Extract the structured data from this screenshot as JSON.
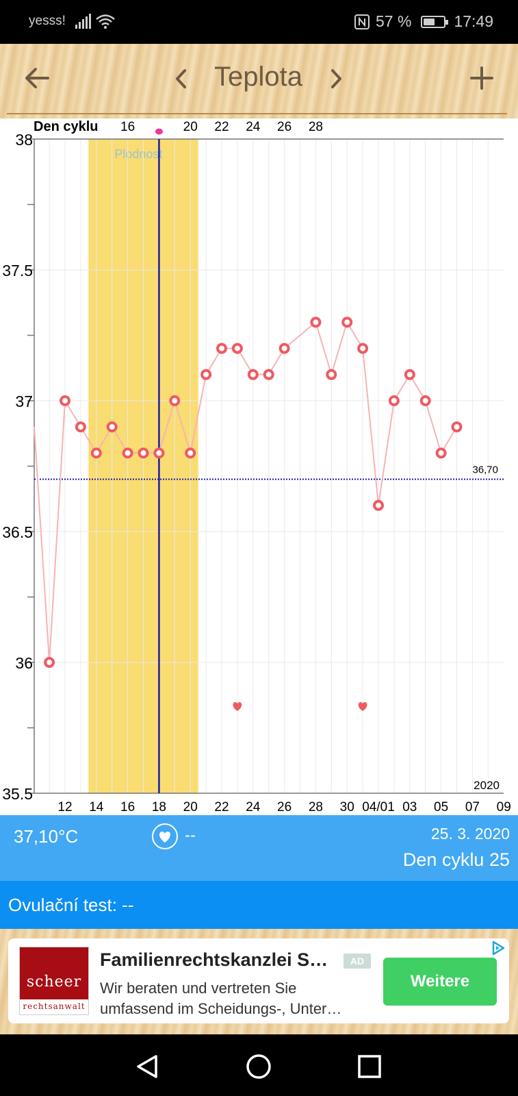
{
  "status_bar": {
    "carrier": "yesss!",
    "battery": "57 %",
    "battery_level": 0.57,
    "time": "17:49",
    "icons": [
      "signal-icon",
      "wifi-icon",
      "nfc-icon",
      "battery-icon"
    ]
  },
  "header": {
    "title": "Teplota",
    "back_icon": "arrow-left-icon",
    "prev_icon": "chevron-left-icon",
    "next_icon": "chevron-right-icon",
    "add_icon": "plus-icon",
    "accent": "#6f5a43"
  },
  "chart_data": {
    "type": "line",
    "top_axis_label": "Den cyklu",
    "top_ticks": [
      "16",
      "20",
      "22",
      "24",
      "26",
      "28"
    ],
    "y_ticks": [
      "38",
      "37.5",
      "37",
      "36.5",
      "36",
      "35.5"
    ],
    "ylim": [
      35.5,
      38
    ],
    "x_ticks": [
      "12",
      "14",
      "16",
      "18",
      "20",
      "22",
      "24",
      "26",
      "28",
      "30",
      "04/01",
      "03",
      "05",
      "07",
      "09"
    ],
    "year_label": "2020",
    "fertile_label": "Plodnost",
    "fertile_range": [
      13.5,
      20.5
    ],
    "current_day": 18,
    "baseline_value": 36.7,
    "baseline_label": "36,70",
    "heart_days": [
      23,
      31
    ],
    "heart_value": 35.83,
    "series": [
      {
        "x": [
          11,
          12,
          13,
          14,
          15,
          16,
          17,
          18,
          19,
          20,
          21,
          22,
          23,
          24,
          25,
          26,
          28,
          29,
          30,
          31,
          32,
          33,
          34,
          35,
          36,
          37
        ],
        "y": [
          36.0,
          37.0,
          36.9,
          36.8,
          36.9,
          36.8,
          36.8,
          36.8,
          37.0,
          36.8,
          37.1,
          37.2,
          37.2,
          37.1,
          37.1,
          37.2,
          37.3,
          37.1,
          37.3,
          37.2,
          36.6,
          37.0,
          37.1,
          37.0,
          36.8,
          36.9
        ]
      }
    ],
    "colors": {
      "fertile": "#f9dc72",
      "marker": "#ef5a61",
      "line": "#f7b3b5",
      "current": "#1a1aa8",
      "baseline": "#1a1aa8"
    }
  },
  "info": {
    "temperature": "37,10°C",
    "heart_icon": "heart-icon",
    "heart_value": "--",
    "date": "25. 3. 2020",
    "cycle_day": "Den cyklu 25"
  },
  "ovulation": {
    "text": "Ovulační test: --"
  },
  "ad": {
    "logo_top": "scheer",
    "logo_bottom": "rechtsanwalt",
    "title": "Familienrechtskanzlei S…",
    "badge": "AD",
    "text_line1": "Wir beraten und vertreten Sie",
    "text_line2": "umfassend im Scheidungs-, Unter…",
    "cta": "Weitere",
    "choice_icon": "adchoices-icon"
  },
  "nav": {
    "icons": [
      "back-triangle-icon",
      "home-circle-icon",
      "recents-square-icon"
    ]
  }
}
